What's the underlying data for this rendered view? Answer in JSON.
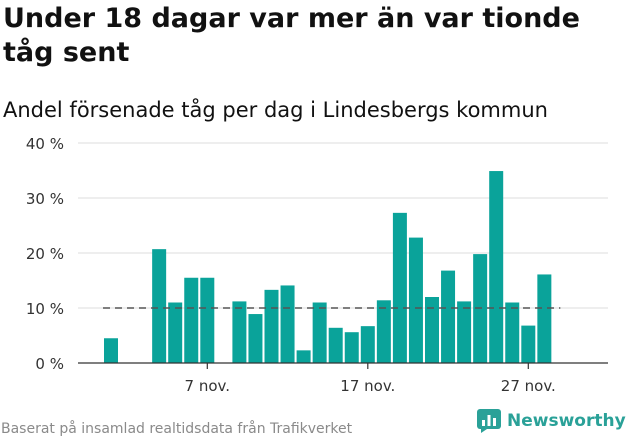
{
  "title": "Under 18 dagar var mer än var tionde tåg sent",
  "subtitle": "Andel försenade tåg per dag i Lindesbergs kommun",
  "footer": "Baserat på insamlad realtidsdata från Trafikverket",
  "brand": {
    "name": "Newsworthy",
    "icon": "newsworthy-logo-icon"
  },
  "colors": {
    "bar": "#0aa39a",
    "reference": "#555555",
    "grid": "#dddddd",
    "axis": "#333333",
    "brand": "#2aa198"
  },
  "chart_data": {
    "type": "bar",
    "x_start_day": 1,
    "values": [
      4.5,
      null,
      null,
      20.7,
      11.0,
      15.5,
      15.5,
      null,
      11.2,
      8.9,
      13.3,
      14.1,
      2.3,
      11.0,
      6.4,
      5.6,
      6.7,
      11.4,
      27.3,
      22.8,
      12.0,
      16.8,
      11.2,
      19.8,
      34.9,
      11.0,
      6.8,
      16.1
    ],
    "reference_line": 10,
    "ylim": [
      0,
      40
    ],
    "yticks": [
      {
        "value": 0,
        "label": "0 %"
      },
      {
        "value": 10,
        "label": "10 %"
      },
      {
        "value": 20,
        "label": "20 %"
      },
      {
        "value": 30,
        "label": "30 %"
      },
      {
        "value": 40,
        "label": "40 %"
      }
    ],
    "xticks": [
      {
        "day": 7,
        "label": "7 nov."
      },
      {
        "day": 17,
        "label": "17 nov."
      },
      {
        "day": 27,
        "label": "27 nov."
      }
    ],
    "grid": true
  }
}
